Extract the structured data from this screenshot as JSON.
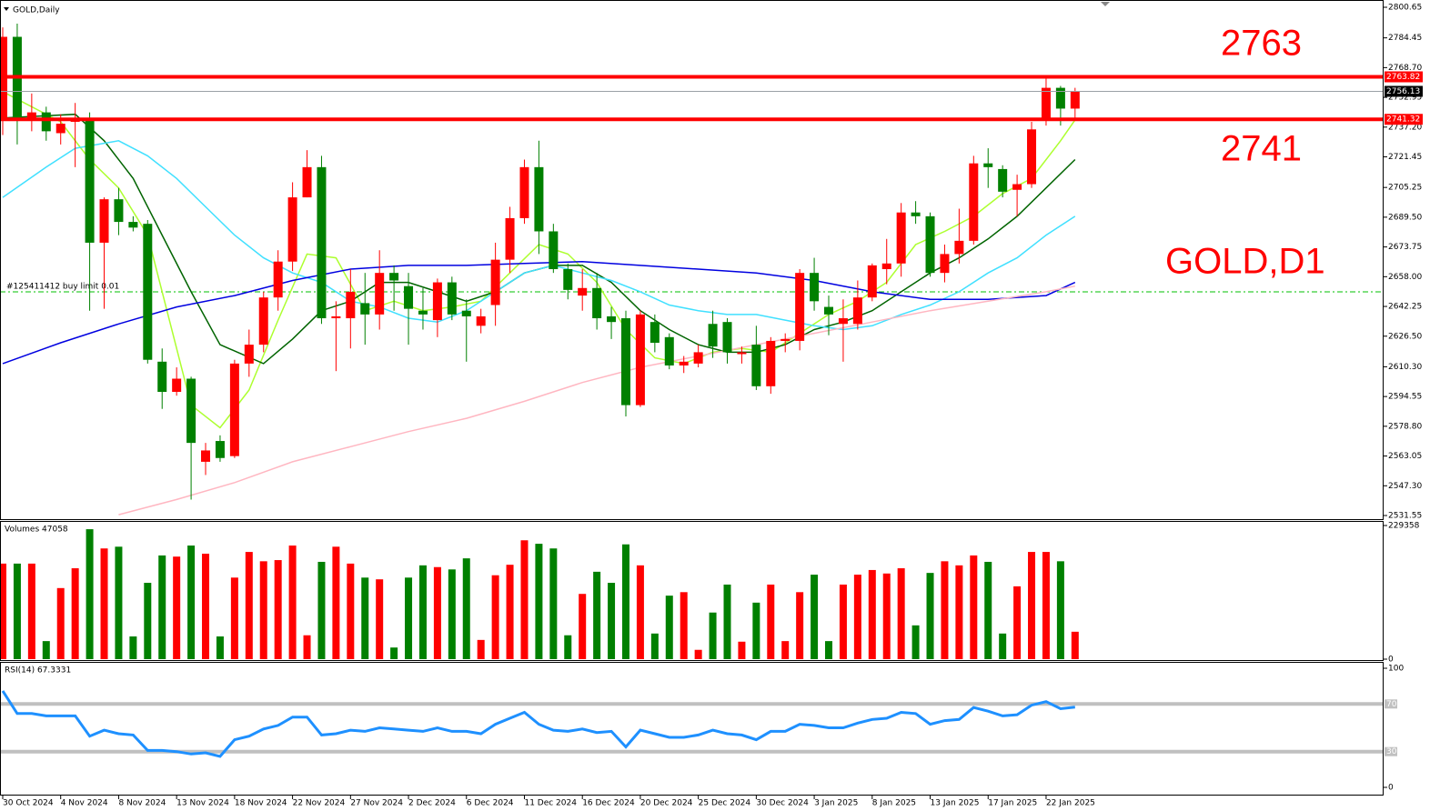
{
  "chart_data": [
    {
      "type": "candlestick",
      "title": "GOLD,Daily",
      "up_color": "#ff0000",
      "down_color": "#008000",
      "open": [
        2742,
        2785,
        2741,
        2745,
        2734,
        2740,
        2742,
        2676,
        2699,
        2687,
        2686,
        2613,
        2597,
        2604,
        2560,
        2571,
        2563,
        2612,
        2622,
        2647,
        2666,
        2700,
        2716,
        2636,
        2636,
        2644,
        2638,
        2660,
        2653,
        2640,
        2635,
        2655,
        2640,
        2632,
        2643,
        2667,
        2689,
        2716,
        2682,
        2662,
        2648,
        2652,
        2637,
        2636,
        2590,
        2634,
        2626,
        2611,
        2612,
        2633,
        2634,
        2617,
        2622,
        2600,
        2624,
        2624,
        2660,
        2642,
        2633,
        2633,
        2647,
        2662,
        2665,
        2692,
        2690,
        2660,
        2670,
        2677,
        2718,
        2715,
        2704,
        2707,
        2741,
        2758,
        2747
      ],
      "high": [
        2790,
        2792,
        2755,
        2748,
        2744,
        2750,
        2745,
        2700,
        2705,
        2690,
        2688,
        2620,
        2610,
        2605,
        2570,
        2574,
        2614,
        2630,
        2650,
        2672,
        2708,
        2725,
        2722,
        2645,
        2662,
        2660,
        2672,
        2664,
        2660,
        2652,
        2657,
        2658,
        2646,
        2641,
        2676,
        2695,
        2720,
        2730,
        2686,
        2665,
        2662,
        2660,
        2642,
        2640,
        2640,
        2638,
        2628,
        2616,
        2622,
        2640,
        2636,
        2621,
        2632,
        2626,
        2628,
        2662,
        2668,
        2648,
        2646,
        2656,
        2665,
        2678,
        2697,
        2698,
        2692,
        2675,
        2694,
        2722,
        2726,
        2717,
        2712,
        2740,
        2764,
        2759,
        2758
      ],
      "low": [
        2733,
        2728,
        2735,
        2730,
        2728,
        2716,
        2640,
        2641,
        2680,
        2682,
        2612,
        2588,
        2595,
        2540,
        2553,
        2560,
        2562,
        2605,
        2618,
        2640,
        2661,
        2700,
        2633,
        2608,
        2620,
        2622,
        2630,
        2640,
        2622,
        2630,
        2626,
        2635,
        2613,
        2628,
        2632,
        2660,
        2686,
        2670,
        2660,
        2646,
        2640,
        2630,
        2625,
        2584,
        2589,
        2618,
        2609,
        2607,
        2610,
        2615,
        2612,
        2612,
        2598,
        2596,
        2618,
        2619,
        2640,
        2627,
        2613,
        2630,
        2645,
        2654,
        2658,
        2686,
        2658,
        2655,
        2665,
        2675,
        2705,
        2700,
        2690,
        2705,
        2738,
        2738,
        2742
      ],
      "close": [
        2785,
        2742,
        2745,
        2735,
        2739,
        2742,
        2676,
        2699,
        2687,
        2684,
        2614,
        2597,
        2604,
        2570,
        2566,
        2562,
        2612,
        2622,
        2647,
        2666,
        2700,
        2716,
        2636,
        2637,
        2650,
        2638,
        2660,
        2656,
        2641,
        2638,
        2655,
        2638,
        2637,
        2637,
        2667,
        2689,
        2716,
        2682,
        2662,
        2651,
        2652,
        2636,
        2634,
        2590,
        2638,
        2623,
        2611,
        2613,
        2618,
        2621,
        2618,
        2618,
        2600,
        2624,
        2625,
        2660,
        2645,
        2638,
        2636,
        2647,
        2664,
        2665,
        2692,
        2690,
        2660,
        2670,
        2677,
        2718,
        2716,
        2703,
        2707,
        2736,
        2758,
        2747,
        2756.13
      ],
      "series": [
        {
          "color": "#adff2f",
          "x": [
            0,
            4,
            6,
            8,
            10,
            13,
            15,
            17,
            19,
            21,
            23,
            25,
            27,
            29,
            31,
            33,
            35,
            37,
            39,
            41,
            43,
            45,
            47,
            49,
            51,
            53,
            55,
            57,
            59,
            61,
            63,
            65,
            67,
            69,
            71,
            73,
            74
          ],
          "values": [
            2756,
            2740,
            2720,
            2705,
            2680,
            2590,
            2578,
            2598,
            2635,
            2670,
            2668,
            2640,
            2645,
            2640,
            2642,
            2645,
            2660,
            2675,
            2670,
            2655,
            2630,
            2615,
            2612,
            2618,
            2620,
            2618,
            2628,
            2638,
            2645,
            2655,
            2675,
            2682,
            2690,
            2702,
            2710,
            2730,
            2741
          ]
        },
        {
          "color": "#006400",
          "x": [
            0,
            5,
            7,
            9,
            11,
            13,
            15,
            18,
            20,
            22,
            24,
            26,
            28,
            30,
            32,
            34,
            36,
            38,
            40,
            42,
            44,
            46,
            48,
            50,
            52,
            54,
            56,
            58,
            60,
            62,
            64,
            66,
            68,
            70,
            72,
            74
          ],
          "values": [
            2742,
            2744,
            2730,
            2710,
            2680,
            2650,
            2622,
            2612,
            2625,
            2640,
            2645,
            2655,
            2655,
            2650,
            2645,
            2650,
            2660,
            2664,
            2664,
            2655,
            2640,
            2630,
            2622,
            2618,
            2618,
            2622,
            2630,
            2634,
            2640,
            2650,
            2660,
            2668,
            2678,
            2690,
            2705,
            2720
          ]
        },
        {
          "color": "#40e0ff",
          "x": [
            0,
            3,
            5,
            8,
            10,
            12,
            14,
            16,
            18,
            20,
            22,
            24,
            26,
            28,
            30,
            32,
            34,
            36,
            38,
            40,
            42,
            44,
            46,
            48,
            50,
            52,
            54,
            56,
            58,
            60,
            62,
            64,
            66,
            68,
            70,
            72,
            74
          ],
          "values": [
            2700,
            2716,
            2726,
            2730,
            2722,
            2710,
            2695,
            2680,
            2668,
            2660,
            2655,
            2645,
            2642,
            2636,
            2634,
            2640,
            2650,
            2660,
            2664,
            2660,
            2656,
            2650,
            2643,
            2640,
            2638,
            2638,
            2635,
            2632,
            2630,
            2632,
            2638,
            2643,
            2650,
            2660,
            2668,
            2680,
            2690
          ]
        },
        {
          "color": "#0000e0",
          "x": [
            0,
            4,
            8,
            12,
            16,
            20,
            24,
            28,
            32,
            36,
            40,
            44,
            48,
            52,
            56,
            60,
            64,
            68,
            72,
            74
          ],
          "values": [
            2612,
            2623,
            2633,
            2642,
            2648,
            2656,
            2662,
            2664,
            2664,
            2665,
            2666,
            2664,
            2662,
            2660,
            2656,
            2650,
            2646,
            2646,
            2648,
            2655
          ]
        },
        {
          "color": "#ffb6c1",
          "x": [
            8,
            12,
            16,
            20,
            24,
            28,
            32,
            36,
            40,
            44,
            48,
            52,
            56,
            60,
            64,
            68,
            72,
            74
          ],
          "values": [
            2532,
            2540,
            2549,
            2560,
            2568,
            2576,
            2583,
            2592,
            2602,
            2610,
            2616,
            2622,
            2628,
            2634,
            2640,
            2645,
            2650,
            2653
          ]
        }
      ],
      "price_lines": [
        {
          "value": 2763.82,
          "color": "#ff0000"
        },
        {
          "value": 2741.32,
          "color": "#ff0000"
        },
        {
          "value": 2756.13,
          "color": "#9aa0a6"
        }
      ],
      "orders": [
        {
          "value": 2650,
          "label": "#125411412 buy limit 0.01",
          "color": "#00c000"
        }
      ],
      "annotations": [
        "2763",
        "2741",
        "GOLD,D1"
      ],
      "ylim": [
        2531.55,
        2800.65
      ],
      "yticks": [
        {
          "value": 2800.65,
          "label": "2800.65"
        },
        {
          "value": 2784.45,
          "label": "2784.45"
        },
        {
          "value": 2768.7,
          "label": "2768.70"
        },
        {
          "value": 2752.95,
          "label": "2752.95"
        },
        {
          "value": 2737.2,
          "label": "2737.20"
        },
        {
          "value": 2721.45,
          "label": "2721.45"
        },
        {
          "value": 2705.25,
          "label": "2705.25"
        },
        {
          "value": 2689.5,
          "label": "2689.50"
        },
        {
          "value": 2673.75,
          "label": "2673.75"
        },
        {
          "value": 2658,
          "label": "2658.00"
        },
        {
          "value": 2642.25,
          "label": "2642.25"
        },
        {
          "value": 2626.5,
          "label": "2626.50"
        },
        {
          "value": 2610.3,
          "label": "2610.30"
        },
        {
          "value": 2594.55,
          "label": "2594.55"
        },
        {
          "value": 2578.8,
          "label": "2578.80"
        },
        {
          "value": 2563.05,
          "label": "2563.05"
        },
        {
          "value": 2547.3,
          "label": "2547.30"
        },
        {
          "value": 2531.55,
          "label": "2531.55"
        }
      ]
    },
    {
      "type": "bar",
      "title": "Volumes 47058",
      "values": [
        164000,
        164000,
        164000,
        31000,
        122000,
        156000,
        223000,
        190000,
        193000,
        39000,
        131000,
        178000,
        176000,
        195000,
        181000,
        39000,
        140000,
        184000,
        168000,
        170000,
        195000,
        41000,
        167000,
        193000,
        164000,
        140000,
        137000,
        20000,
        140000,
        161000,
        158000,
        154000,
        173000,
        33000,
        144000,
        162000,
        204000,
        198000,
        190000,
        41000,
        112000,
        150000,
        131000,
        197000,
        161000,
        44000,
        109000,
        115000,
        16000,
        80000,
        128000,
        30000,
        97000,
        128000,
        31000,
        115000,
        145000,
        31000,
        128000,
        145000,
        153000,
        147000,
        156000,
        58000,
        148000,
        168000,
        161000,
        178000,
        167000,
        44000,
        125000,
        184000,
        184000,
        168000,
        47058
      ],
      "ylim": [
        0,
        229358
      ],
      "yticks": [
        0,
        229358
      ]
    },
    {
      "type": "line",
      "title": "RSI(14) 67.3331",
      "color": "#1e90ff",
      "values": [
        81,
        62,
        62,
        60,
        60,
        60,
        43,
        48,
        45,
        44,
        31,
        31,
        30,
        28,
        29,
        26,
        40,
        43,
        49,
        52,
        59,
        59,
        44,
        45,
        48,
        47,
        50,
        49,
        48,
        47,
        50,
        47,
        47,
        45,
        53,
        58,
        63,
        53,
        48,
        47,
        49,
        46,
        47,
        34,
        48,
        45,
        42,
        42,
        44,
        48,
        45,
        44,
        40,
        47,
        47,
        53,
        52,
        50,
        50,
        54,
        57,
        58,
        63,
        62,
        53,
        56,
        57,
        67,
        64,
        60,
        61,
        69,
        72,
        66,
        67.3331
      ],
      "ylim": [
        0,
        100
      ],
      "yticks": [
        0,
        100
      ],
      "levels": [
        30,
        70
      ],
      "xticks": [
        {
          "value": 0,
          "label": "30 Oct 2024"
        },
        {
          "value": 4,
          "label": "4 Nov 2024"
        },
        {
          "value": 8,
          "label": "8 Nov 2024"
        },
        {
          "value": 12,
          "label": "13 Nov 2024"
        },
        {
          "value": 16,
          "label": "18 Nov 2024"
        },
        {
          "value": 20,
          "label": "22 Nov 2024"
        },
        {
          "value": 24,
          "label": "27 Nov 2024"
        },
        {
          "value": 28,
          "label": "2 Dec 2024"
        },
        {
          "value": 32,
          "label": "6 Dec 2024"
        },
        {
          "value": 36,
          "label": "11 Dec 2024"
        },
        {
          "value": 40,
          "label": "16 Dec 2024"
        },
        {
          "value": 44,
          "label": "20 Dec 2024"
        },
        {
          "value": 48,
          "label": "25 Dec 2024"
        },
        {
          "value": 52,
          "label": "30 Dec 2024"
        },
        {
          "value": 56,
          "label": "3 Jan 2025"
        },
        {
          "value": 60,
          "label": "8 Jan 2025"
        },
        {
          "value": 64,
          "label": "13 Jan 2025"
        },
        {
          "value": 68,
          "label": "17 Jan 2025"
        },
        {
          "value": 72,
          "label": "22 Jan 2025"
        }
      ]
    }
  ]
}
